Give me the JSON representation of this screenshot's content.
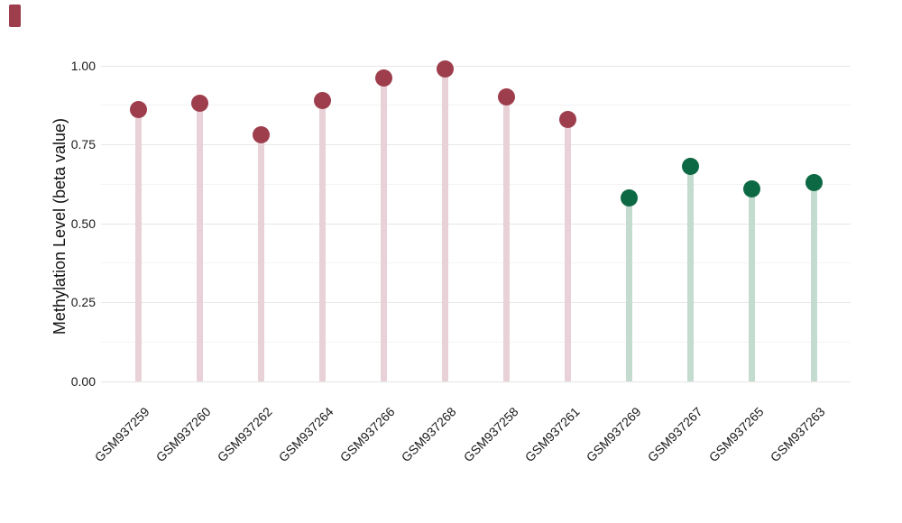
{
  "chart_data": {
    "type": "lollipop",
    "title": "",
    "xlabel": "",
    "ylabel": "Methylation Level (beta value)",
    "categories": [
      "GSM937259",
      "GSM937260",
      "GSM937262",
      "GSM937264",
      "GSM937266",
      "GSM937268",
      "GSM937258",
      "GSM937261",
      "GSM937269",
      "GSM937267",
      "GSM937265",
      "GSM937263"
    ],
    "values": [
      0.86,
      0.88,
      0.78,
      0.89,
      0.96,
      0.99,
      0.9,
      0.83,
      0.58,
      0.68,
      0.61,
      0.63
    ],
    "point_colors": [
      "#9E3D4C",
      "#9E3D4C",
      "#9E3D4C",
      "#9E3D4C",
      "#9E3D4C",
      "#9E3D4C",
      "#9E3D4C",
      "#9E3D4C",
      "#0D6944",
      "#0D6944",
      "#0D6944",
      "#0D6944"
    ],
    "stem_colors": [
      "#E8D2D7",
      "#E8D2D7",
      "#E8D2D7",
      "#E8D2D7",
      "#E8D2D7",
      "#E8D2D7",
      "#E8D2D7",
      "#E8D2D7",
      "#C4DBD0",
      "#C4DBD0",
      "#C4DBD0",
      "#C4DBD0"
    ],
    "yticks": {
      "values": [
        0,
        0.25,
        0.5,
        0.75,
        1.0
      ],
      "labels": [
        "0.00",
        "0.25",
        "0.50",
        "0.75",
        "1.00"
      ]
    },
    "minor_gridlines": [
      0.125,
      0.375,
      0.625,
      0.875
    ],
    "ylim": [
      0,
      1.05
    ],
    "grid": true,
    "legend": null
  },
  "decor": {
    "corner_mark_color": "#9E3D4C"
  }
}
